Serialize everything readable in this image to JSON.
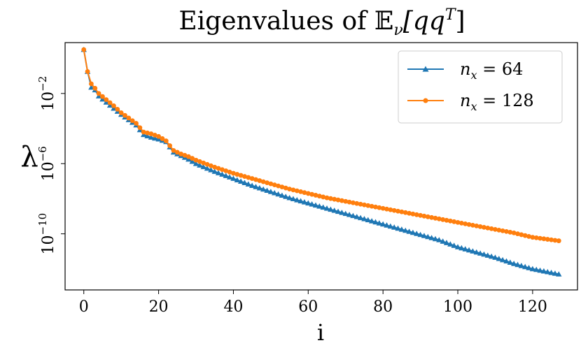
{
  "chart_data": {
    "type": "line",
    "title": "Eigenvalues of 𝔼ν[qqT]",
    "title_parts": {
      "prefix": "Eigenvalues of ",
      "E": "𝔼",
      "sub": "ν",
      "body": "[qq",
      "sup": "T",
      "close": "]"
    },
    "xlabel": "i",
    "ylabel": "λ",
    "xlim": [
      -5,
      132
    ],
    "ylim_log10": [
      -13.2,
      0.9
    ],
    "yscale": "log",
    "x_ticks": [
      0,
      20,
      40,
      60,
      80,
      100,
      120
    ],
    "x_tick_labels": [
      "0",
      "20",
      "40",
      "60",
      "80",
      "100",
      "120"
    ],
    "y_ticks_log10": [
      -2,
      -6,
      -10
    ],
    "y_tick_labels": [
      {
        "base": "10",
        "exp": "−2"
      },
      {
        "base": "10",
        "exp": "−6"
      },
      {
        "base": "10",
        "exp": "−10"
      }
    ],
    "legend_position": "upper right",
    "series": [
      {
        "name": "n_x = 64",
        "label_parts": {
          "var": "n",
          "sub": "x",
          "rest": " = 64"
        },
        "color": "#1f77b4",
        "marker": "triangle",
        "x_range": [
          0,
          127
        ],
        "log10_anchors": [
          [
            0,
            0.5
          ],
          [
            1,
            -0.75
          ],
          [
            2,
            -1.65
          ],
          [
            3,
            -1.8
          ],
          [
            4,
            -2.15
          ],
          [
            6,
            -2.5
          ],
          [
            8,
            -2.85
          ],
          [
            10,
            -3.2
          ],
          [
            12,
            -3.5
          ],
          [
            14,
            -3.8
          ],
          [
            16,
            -4.35
          ],
          [
            18,
            -4.5
          ],
          [
            20,
            -4.6
          ],
          [
            22,
            -4.75
          ],
          [
            24,
            -5.35
          ],
          [
            26,
            -5.55
          ],
          [
            28,
            -5.75
          ],
          [
            30,
            -6.0
          ],
          [
            35,
            -6.45
          ],
          [
            40,
            -6.85
          ],
          [
            45,
            -7.25
          ],
          [
            50,
            -7.6
          ],
          [
            55,
            -7.95
          ],
          [
            60,
            -8.25
          ],
          [
            65,
            -8.55
          ],
          [
            70,
            -8.85
          ],
          [
            75,
            -9.15
          ],
          [
            80,
            -9.45
          ],
          [
            85,
            -9.75
          ],
          [
            90,
            -10.05
          ],
          [
            95,
            -10.35
          ],
          [
            100,
            -10.75
          ],
          [
            105,
            -11.05
          ],
          [
            110,
            -11.35
          ],
          [
            115,
            -11.7
          ],
          [
            120,
            -12.0
          ],
          [
            127,
            -12.3
          ]
        ]
      },
      {
        "name": "n_x = 128",
        "label_parts": {
          "var": "n",
          "sub": "x",
          "rest": " = 128"
        },
        "color": "#ff7f0e",
        "marker": "circle",
        "x_range": [
          0,
          127
        ],
        "log10_anchors": [
          [
            0,
            0.5
          ],
          [
            1,
            -0.75
          ],
          [
            2,
            -1.45
          ],
          [
            3,
            -1.7
          ],
          [
            4,
            -2.0
          ],
          [
            6,
            -2.35
          ],
          [
            8,
            -2.7
          ],
          [
            10,
            -3.1
          ],
          [
            12,
            -3.4
          ],
          [
            14,
            -3.7
          ],
          [
            16,
            -4.2
          ],
          [
            18,
            -4.3
          ],
          [
            20,
            -4.45
          ],
          [
            22,
            -4.7
          ],
          [
            24,
            -5.25
          ],
          [
            26,
            -5.45
          ],
          [
            28,
            -5.6
          ],
          [
            30,
            -5.8
          ],
          [
            35,
            -6.2
          ],
          [
            40,
            -6.55
          ],
          [
            45,
            -6.85
          ],
          [
            50,
            -7.15
          ],
          [
            55,
            -7.45
          ],
          [
            60,
            -7.7
          ],
          [
            65,
            -7.95
          ],
          [
            70,
            -8.15
          ],
          [
            75,
            -8.35
          ],
          [
            80,
            -8.55
          ],
          [
            85,
            -8.75
          ],
          [
            90,
            -8.95
          ],
          [
            95,
            -9.15
          ],
          [
            100,
            -9.35
          ],
          [
            105,
            -9.55
          ],
          [
            110,
            -9.75
          ],
          [
            115,
            -9.95
          ],
          [
            120,
            -10.2
          ],
          [
            127,
            -10.4
          ]
        ]
      }
    ]
  }
}
